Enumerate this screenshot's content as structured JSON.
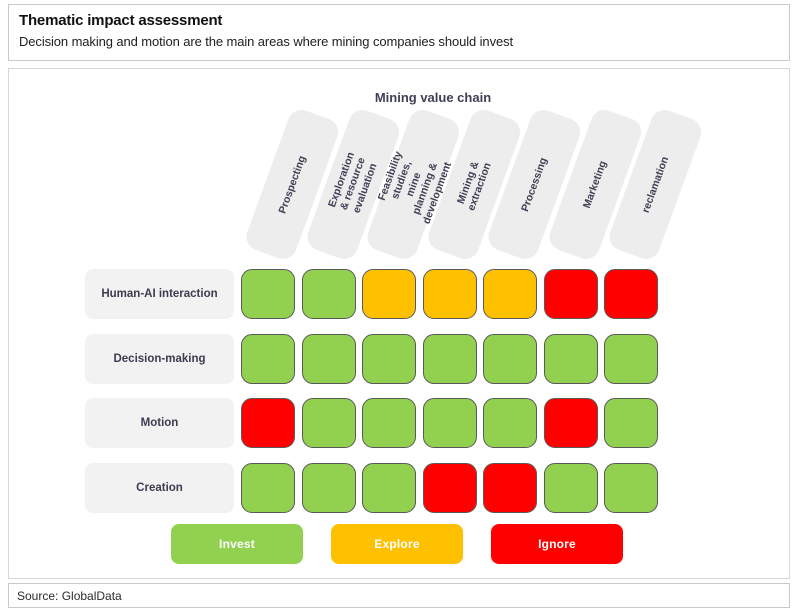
{
  "header": {
    "title": "Thematic impact assessment",
    "subtitle": "Decision making and motion are the main areas where mining companies should invest"
  },
  "source": {
    "label": "Source: GlobalData"
  },
  "chart_data": {
    "type": "heatmap",
    "title": "Mining value chain",
    "columns": [
      "Prospecting",
      "Exploration & resource evaluation",
      "Feasibility studies, mine planning & development",
      "Mining & extraction",
      "Processing",
      "Marketing",
      "reclamation"
    ],
    "rows": [
      "Human-AI interaction",
      "Decision-making",
      "Motion",
      "Creation"
    ],
    "values": [
      [
        "invest",
        "invest",
        "explore",
        "explore",
        "explore",
        "ignore",
        "ignore"
      ],
      [
        "invest",
        "invest",
        "invest",
        "invest",
        "invest",
        "invest",
        "invest"
      ],
      [
        "ignore",
        "invest",
        "invest",
        "invest",
        "invest",
        "ignore",
        "invest"
      ],
      [
        "invest",
        "invest",
        "invest",
        "ignore",
        "ignore",
        "invest",
        "invest"
      ]
    ],
    "colors": {
      "invest": "#92d050",
      "explore": "#ffc000",
      "ignore": "#ff0000"
    },
    "legend": [
      {
        "label": "Invest",
        "color": "#92d050"
      },
      {
        "label": "Explore",
        "color": "#ffc000"
      },
      {
        "label": "Ignore",
        "color": "#ff0000"
      }
    ],
    "legend_position": "bottom",
    "cell_border_color": "#595959",
    "header_bg": "#ededed",
    "row_label_bg": "#f2f2f2"
  }
}
